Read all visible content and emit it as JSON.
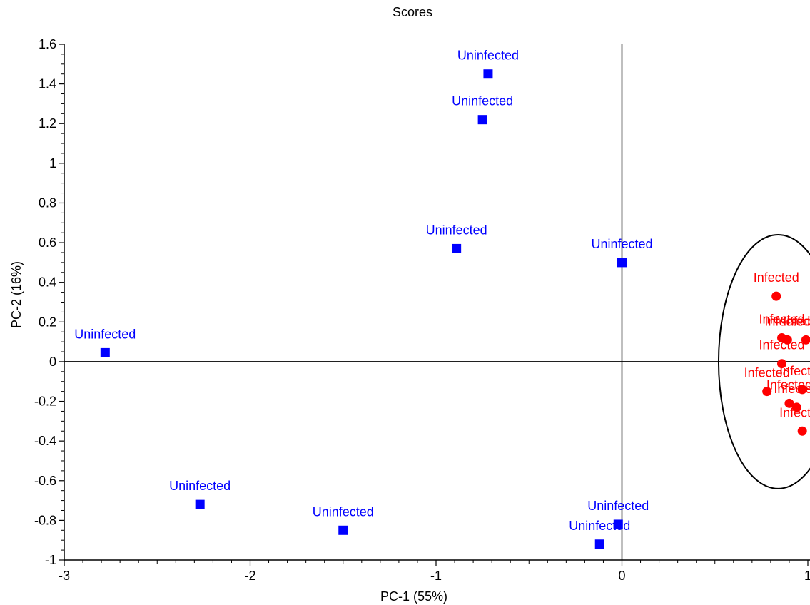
{
  "chart_data": {
    "type": "scatter",
    "title": "Scores",
    "xlabel": "PC-1 (55%)",
    "ylabel": "PC-2 (16%)",
    "xlim": [
      -3,
      1
    ],
    "ylim": [
      -1,
      1.6
    ],
    "x_ticks": [
      "-3",
      "-2",
      "-1",
      "0",
      "1"
    ],
    "y_ticks": [
      "1.6",
      "1.4",
      "1.2",
      "1",
      "0.8",
      "0.6",
      "0.4",
      "0.2",
      "0",
      "-0.2",
      "-0.4",
      "-0.6",
      "-0.8",
      "-1"
    ],
    "grid": false,
    "legend": "none",
    "series": [
      {
        "name": "Uninfected",
        "color": "#0000ff",
        "marker": "square",
        "points": [
          {
            "x": -0.72,
            "y": 1.45,
            "label": "Uninfected"
          },
          {
            "x": -0.75,
            "y": 1.22,
            "label": "Uninfected"
          },
          {
            "x": -0.89,
            "y": 0.57,
            "label": "Uninfected"
          },
          {
            "x": 0.0,
            "y": 0.5,
            "label": "Uninfected"
          },
          {
            "x": -2.78,
            "y": 0.045,
            "label": "Uninfected"
          },
          {
            "x": -2.27,
            "y": -0.72,
            "label": "Uninfected"
          },
          {
            "x": -1.5,
            "y": -0.85,
            "label": "Uninfected"
          },
          {
            "x": -0.02,
            "y": -0.82,
            "label": "Uninfected"
          },
          {
            "x": -0.12,
            "y": -0.92,
            "label": "Uninfected"
          }
        ]
      },
      {
        "name": "Infected",
        "color": "#ff0000",
        "marker": "circle",
        "points": [
          {
            "x": 0.83,
            "y": 0.33,
            "label": "Infected"
          },
          {
            "x": 0.86,
            "y": 0.12,
            "label": "Infected"
          },
          {
            "x": 0.89,
            "y": 0.11,
            "label": "Infected"
          },
          {
            "x": 0.99,
            "y": 0.11,
            "label": "Infected"
          },
          {
            "x": 0.86,
            "y": -0.01,
            "label": "Infected"
          },
          {
            "x": 0.78,
            "y": -0.15,
            "label": "Infected"
          },
          {
            "x": 0.97,
            "y": -0.14,
            "label": "Infected"
          },
          {
            "x": 0.9,
            "y": -0.21,
            "label": "Infected"
          },
          {
            "x": 0.94,
            "y": -0.23,
            "label": "Infected"
          },
          {
            "x": 0.97,
            "y": -0.35,
            "label": "Infected"
          }
        ]
      }
    ],
    "annotations": [
      {
        "type": "ellipse",
        "cx": 0.84,
        "cy": 0.0,
        "rx": 0.32,
        "ry": 0.64,
        "color": "#000000"
      }
    ]
  }
}
